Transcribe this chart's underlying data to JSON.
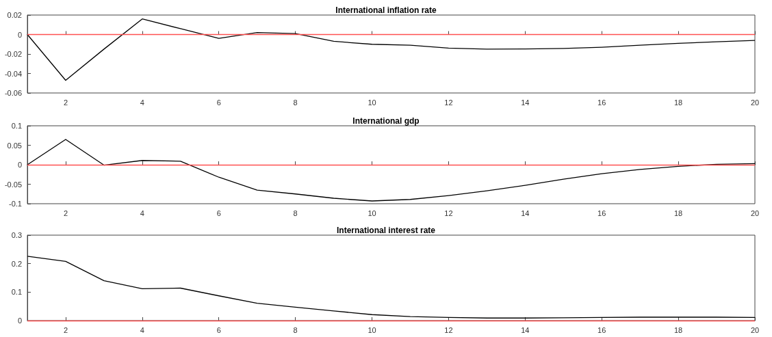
{
  "chart_data": [
    {
      "type": "line",
      "title": "International inflation rate",
      "x": [
        1,
        2,
        3,
        4,
        5,
        6,
        7,
        8,
        9,
        10,
        11,
        12,
        13,
        14,
        15,
        16,
        17,
        18,
        19,
        20
      ],
      "series": [
        {
          "color": "#000000",
          "values": [
            0,
            -0.047,
            -0.015,
            0.016,
            0.006,
            -0.004,
            0.002,
            0.001,
            -0.007,
            -0.01,
            -0.011,
            -0.014,
            -0.015,
            -0.0148,
            -0.0143,
            -0.013,
            -0.011,
            -0.009,
            -0.0075,
            -0.006
          ]
        }
      ],
      "xlim": [
        1,
        20
      ],
      "xticks": [
        2,
        4,
        6,
        8,
        10,
        12,
        14,
        16,
        18,
        20
      ],
      "ylim": [
        -0.06,
        0.02
      ],
      "yticks": [
        -0.06,
        -0.04,
        -0.02,
        0,
        0.02
      ],
      "ref_lines": [
        {
          "axis": "y",
          "value": 0,
          "color": "#ff5050"
        }
      ],
      "grid": false,
      "marker": "none",
      "line_style": "solid"
    },
    {
      "type": "line",
      "title": "International gdp",
      "x": [
        1,
        2,
        3,
        4,
        5,
        6,
        7,
        8,
        9,
        10,
        11,
        12,
        13,
        14,
        15,
        16,
        17,
        18,
        19,
        20
      ],
      "series": [
        {
          "color": "#000000",
          "values": [
            0,
            0.065,
            -0.001,
            0.011,
            0.009,
            -0.032,
            -0.065,
            -0.075,
            -0.086,
            -0.093,
            -0.089,
            -0.079,
            -0.067,
            -0.053,
            -0.037,
            -0.023,
            -0.012,
            -0.004,
            0.001,
            0.003
          ]
        }
      ],
      "xlim": [
        1,
        20
      ],
      "xticks": [
        2,
        4,
        6,
        8,
        10,
        12,
        14,
        16,
        18,
        20
      ],
      "ylim": [
        -0.1,
        0.1
      ],
      "yticks": [
        -0.1,
        -0.05,
        0,
        0.05,
        0.1
      ],
      "ref_lines": [
        {
          "axis": "y",
          "value": 0,
          "color": "#ff5050"
        }
      ],
      "grid": false,
      "marker": "none",
      "line_style": "solid"
    },
    {
      "type": "line",
      "title": "International interest rate",
      "x": [
        1,
        2,
        3,
        4,
        5,
        6,
        7,
        8,
        9,
        10,
        11,
        12,
        13,
        14,
        15,
        16,
        17,
        18,
        19,
        20
      ],
      "series": [
        {
          "color": "#000000",
          "values": [
            0.226,
            0.208,
            0.14,
            0.112,
            0.114,
            0.087,
            0.061,
            0.047,
            0.034,
            0.021,
            0.014,
            0.011,
            0.009,
            0.009,
            0.01,
            0.011,
            0.012,
            0.012,
            0.012,
            0.011
          ]
        }
      ],
      "xlim": [
        1,
        20
      ],
      "xticks": [
        2,
        4,
        6,
        8,
        10,
        12,
        14,
        16,
        18,
        20
      ],
      "ylim": [
        0,
        0.3
      ],
      "yticks": [
        0,
        0.1,
        0.2,
        0.3
      ],
      "ref_lines": [
        {
          "axis": "y",
          "value": 0,
          "color": "#ff5050"
        }
      ],
      "grid": false,
      "marker": "none",
      "line_style": "solid"
    }
  ]
}
